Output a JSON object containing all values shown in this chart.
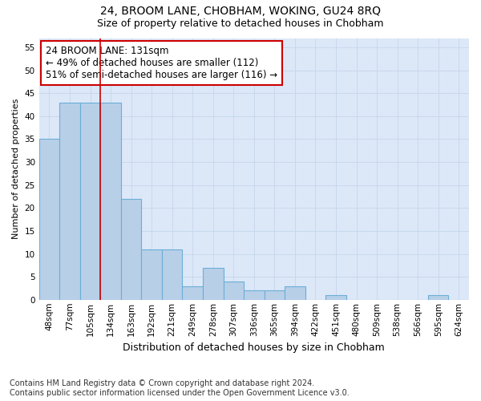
{
  "title": "24, BROOM LANE, CHOBHAM, WOKING, GU24 8RQ",
  "subtitle": "Size of property relative to detached houses in Chobham",
  "xlabel": "Distribution of detached houses by size in Chobham",
  "ylabel": "Number of detached properties",
  "categories": [
    "48sqm",
    "77sqm",
    "105sqm",
    "134sqm",
    "163sqm",
    "192sqm",
    "221sqm",
    "249sqm",
    "278sqm",
    "307sqm",
    "336sqm",
    "365sqm",
    "394sqm",
    "422sqm",
    "451sqm",
    "480sqm",
    "509sqm",
    "538sqm",
    "566sqm",
    "595sqm",
    "624sqm"
  ],
  "values": [
    35,
    43,
    43,
    43,
    22,
    11,
    11,
    3,
    7,
    4,
    2,
    2,
    3,
    0,
    1,
    0,
    0,
    0,
    0,
    1,
    0
  ],
  "bar_color": "#b8cfe8",
  "bar_edgecolor": "#6baed6",
  "bar_linewidth": 0.8,
  "vline_x_index": 3,
  "vline_color": "#cc0000",
  "annotation_text": "24 BROOM LANE: 131sqm\n← 49% of detached houses are smaller (112)\n51% of semi-detached houses are larger (116) →",
  "annotation_box_color": "#ffffff",
  "annotation_box_edgecolor": "#cc0000",
  "annotation_fontsize": 8.5,
  "ylim": [
    0,
    57
  ],
  "yticks": [
    0,
    5,
    10,
    15,
    20,
    25,
    30,
    35,
    40,
    45,
    50,
    55
  ],
  "grid_color": "#c8d8ec",
  "background_color": "#dce8f8",
  "footer": "Contains HM Land Registry data © Crown copyright and database right 2024.\nContains public sector information licensed under the Open Government Licence v3.0.",
  "title_fontsize": 10,
  "subtitle_fontsize": 9,
  "xlabel_fontsize": 9,
  "ylabel_fontsize": 8,
  "tick_fontsize": 7.5,
  "footer_fontsize": 7
}
